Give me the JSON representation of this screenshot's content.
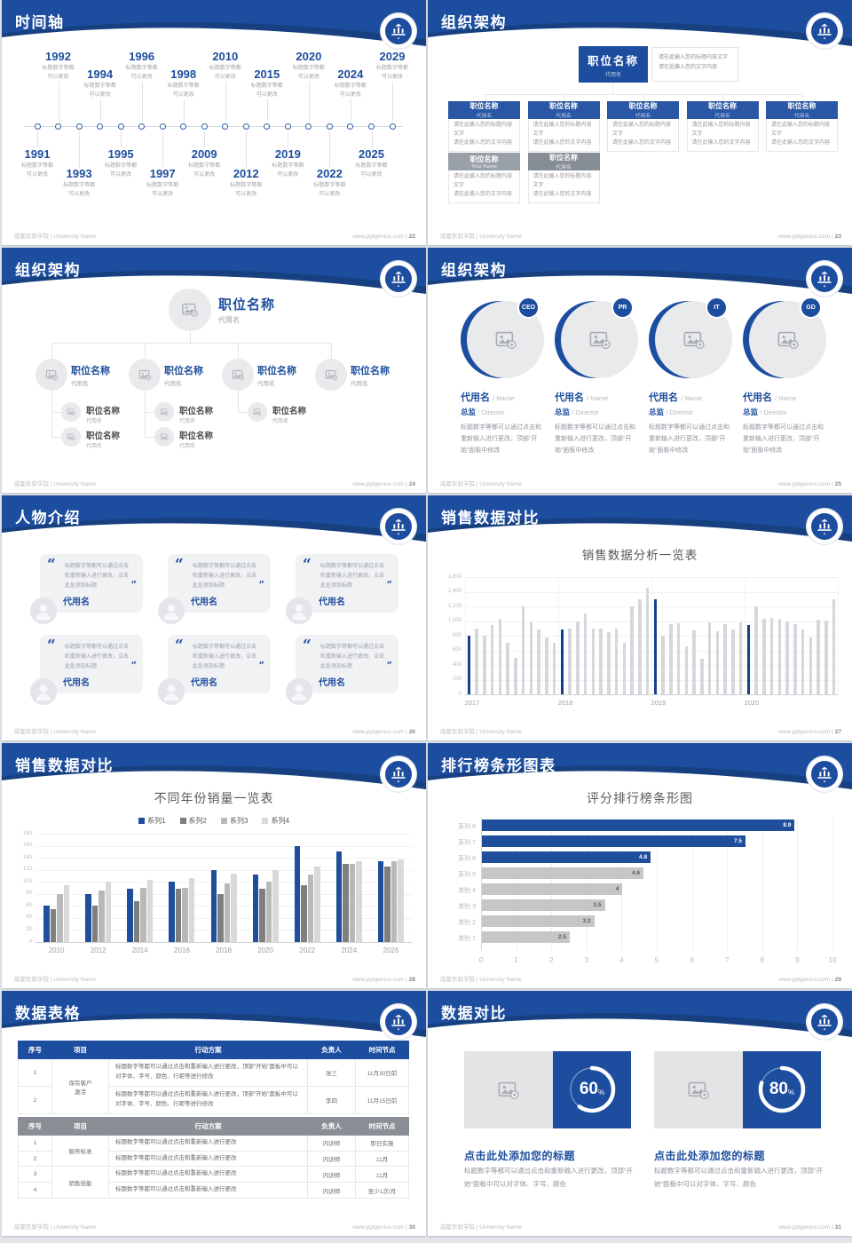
{
  "page": {
    "background": "#e2e5ea",
    "accent": "#1d4d9f",
    "dark_accent": "#16407f"
  },
  "footer": {
    "brand": "成都东软学院 | University Name",
    "site": "www.pptgenius.com",
    "separator": "|"
  },
  "slides": {
    "timeline": {
      "title": "时间轴",
      "page": "22",
      "caption": [
        "标题数字等都",
        "可以更改"
      ],
      "events": [
        {
          "year": "1991",
          "side": "bottom"
        },
        {
          "year": "1992",
          "side": "top"
        },
        {
          "year": "1993",
          "side": "bottom"
        },
        {
          "year": "1994",
          "side": "top"
        },
        {
          "year": "1995",
          "side": "bottom"
        },
        {
          "year": "1996",
          "side": "top"
        },
        {
          "year": "1997",
          "side": "bottom"
        },
        {
          "year": "1998",
          "side": "top"
        },
        {
          "year": "2009",
          "side": "bottom"
        },
        {
          "year": "2010",
          "side": "top"
        },
        {
          "year": "2012",
          "side": "bottom"
        },
        {
          "year": "2015",
          "side": "top"
        },
        {
          "year": "2019",
          "side": "bottom"
        },
        {
          "year": "2020",
          "side": "top"
        },
        {
          "year": "2022",
          "side": "bottom"
        },
        {
          "year": "2024",
          "side": "top"
        },
        {
          "year": "2025",
          "side": "bottom"
        },
        {
          "year": "2029",
          "side": "top"
        }
      ]
    },
    "org_boxes": {
      "title": "组织架构",
      "page": "23",
      "root": {
        "title": "职位名称",
        "alias": "代用名"
      },
      "root_note": [
        "请在此输入您的标题内容文字",
        "请在此输入您的文字内容"
      ],
      "body_lines": [
        "请在此输入您的标题内容文字",
        "请在此输入您的文字内容"
      ],
      "children": [
        {
          "title": "职位名称",
          "alias": "代用名"
        },
        {
          "title": "职位名称",
          "alias": "代用名"
        },
        {
          "title": "职位名称",
          "alias": "代用名"
        },
        {
          "title": "职位名称",
          "alias": "代用名"
        },
        {
          "title": "职位名称",
          "alias": "代用名"
        }
      ],
      "extras": [
        {
          "title": "职位名称",
          "alias": "Your Name"
        },
        {
          "title": "职位名称",
          "alias": "代用名"
        }
      ]
    },
    "org_tree": {
      "title": "组织架构",
      "page": "24",
      "root": {
        "title": "职位名称",
        "alias": "代用名"
      },
      "children": [
        {
          "title": "职位名称",
          "alias": "代用名",
          "subs": [
            {
              "title": "职位名称",
              "alias": "代用名"
            },
            {
              "title": "职位名称",
              "alias": "代用名"
            }
          ]
        },
        {
          "title": "职位名称",
          "alias": "代用名",
          "subs": [
            {
              "title": "职位名称",
              "alias": "代用名"
            },
            {
              "title": "职位名称",
              "alias": "代用名"
            }
          ]
        },
        {
          "title": "职位名称",
          "alias": "代用名",
          "subs": [
            {
              "title": "职位名称",
              "alias": "代用名"
            }
          ]
        },
        {
          "title": "职位名称",
          "alias": "代用名",
          "subs": []
        }
      ]
    },
    "org_circles": {
      "title": "组织架构",
      "page": "25",
      "members": [
        {
          "badge": "CEO",
          "name_cn": "代用名",
          "name_en": "Name",
          "role_cn": "总监",
          "role_en": "Director",
          "body": "标题数字等都可以通过点击和重新输入进行更改，顶部“开始”面板中修改"
        },
        {
          "badge": "PR",
          "name_cn": "代用名",
          "name_en": "Name",
          "role_cn": "总监",
          "role_en": "Director",
          "body": "标题数字等都可以通过点击和重新输入进行更改，顶部“开始”面板中修改"
        },
        {
          "badge": "IT",
          "name_cn": "代用名",
          "name_en": "Name",
          "role_cn": "总监",
          "role_en": "Director",
          "body": "标题数字等都可以通过点击和重新输入进行更改，顶部“开始”面板中修改"
        },
        {
          "badge": "GD",
          "name_cn": "代用名",
          "name_en": "Name",
          "role_cn": "总监",
          "role_en": "Director",
          "body": "标题数字等都可以通过点击和重新输入进行更改，顶部“开始”面板中修改"
        }
      ]
    },
    "people": {
      "title": "人物介绍",
      "page": "26",
      "cards": [
        {
          "quote": "标题数字等都可以通过点击和重新输入进行更改，点击此处添加标题",
          "name": "代用名"
        },
        {
          "quote": "标题数字等都可以通过点击和重新输入进行更改，点击此处添加标题",
          "name": "代用名"
        },
        {
          "quote": "标题数字等都可以通过点击和重新输入进行更改，点击此处添加标题",
          "name": "代用名"
        },
        {
          "quote": "标题数字等都可以通过点击和重新输入进行更改，点击此处添加标题",
          "name": "代用名"
        },
        {
          "quote": "标题数字等都可以通过点击和重新输入进行更改，点击此处添加标题",
          "name": "代用名"
        },
        {
          "quote": "标题数字等都可以通过点击和重新输入进行更改，点击此处添加标题",
          "name": "代用名"
        }
      ]
    },
    "sales_monthly": {
      "title": "销售数据对比",
      "page": "27"
    },
    "sales_yearly": {
      "title": "销售数据对比",
      "page": "28"
    },
    "ranking": {
      "title": "排行榜条形图表",
      "page": "29"
    },
    "tables": {
      "title": "数据表格",
      "page": "30",
      "columns": [
        "序号",
        "项目",
        "行动方案",
        "负责人",
        "时间节点"
      ],
      "table1": {
        "project": "保有客户激活",
        "plan": "标题数字等都可以通过点击和重新输入进行更改，顶部“开始”面板中可以对字体、字号、颜色、行距等进行修改",
        "rows": [
          {
            "no": "1",
            "owner": "张三",
            "time": "11月30日前"
          },
          {
            "no": "2",
            "owner": "李四",
            "time": "11月15日前"
          }
        ]
      },
      "table2": {
        "projects": [
          {
            "label": "服务标准",
            "span": 2
          },
          {
            "label": "销售技能",
            "span": 2
          }
        ],
        "plan": "标题数字等都可以通过点击和重新输入进行更改",
        "rows": [
          {
            "no": "1",
            "owner": "内训师",
            "time": "即日实施"
          },
          {
            "no": "2",
            "owner": "内训师",
            "time": "11月"
          },
          {
            "no": "3",
            "owner": "内训师",
            "time": "11月"
          },
          {
            "no": "4",
            "owner": "内训师",
            "time": "至少1次/月"
          }
        ]
      }
    },
    "compare": {
      "title": "数据对比",
      "page": "31",
      "panels": [
        {
          "percent": "60",
          "percent_sign": "%",
          "title": "点击此处添加您的标题",
          "body": "标题数字等都可以通过点击和重新输入进行更改，顶部“开始”面板中可以对字体、字号、颜色"
        },
        {
          "percent": "80",
          "percent_sign": "%",
          "title": "点击此处添加您的标题",
          "body": "标题数字等都可以通过点击和重新输入进行更改，顶部“开始”面板中可以对字体、字号、颜色"
        }
      ]
    }
  },
  "chart_data": [
    {
      "id": "sales_monthly",
      "type": "bar",
      "title": "销售数据分析一览表",
      "categories": [
        "2017",
        "2018",
        "2019",
        "2020"
      ],
      "bars_per_year": 12,
      "values": [
        800,
        900,
        800,
        950,
        1030,
        700,
        500,
        1200,
        980,
        890,
        780,
        700,
        890,
        900,
        1000,
        1100,
        900,
        900,
        850,
        900,
        700,
        1200,
        1300,
        1450,
        1300,
        800,
        960,
        970,
        660,
        870,
        490,
        980,
        860,
        960,
        890,
        980,
        950,
        1200,
        1030,
        1040,
        1030,
        990,
        960,
        890,
        780,
        1020,
        1010,
        1300
      ],
      "highlight_indices": [
        0,
        12,
        24,
        36
      ],
      "ylim": [
        0,
        1600
      ],
      "ytick_step": 200,
      "bar_color": "#d4d7db",
      "highlight_color": "#14418c",
      "grid": true
    },
    {
      "id": "sales_yearly",
      "type": "bar",
      "title": "不同年份销量一览表",
      "categories": [
        "2010",
        "2012",
        "2014",
        "2016",
        "2018",
        "2020",
        "2022",
        "2024",
        "2026"
      ],
      "series": [
        {
          "name": "系列1",
          "color": "#1f4e9c",
          "values": [
            60,
            80,
            88,
            100,
            120,
            112,
            160,
            150,
            135
          ]
        },
        {
          "name": "系列2",
          "color": "#7f7f7f",
          "values": [
            55,
            60,
            68,
            88,
            80,
            88,
            95,
            130,
            125
          ]
        },
        {
          "name": "系列3",
          "color": "#b9b9b9",
          "values": [
            80,
            86,
            90,
            90,
            98,
            100,
            112,
            130,
            135
          ]
        },
        {
          "name": "系列4",
          "color": "#d9d9d9",
          "values": [
            95,
            100,
            103,
            106,
            113,
            120,
            125,
            135,
            138
          ]
        }
      ],
      "ylim": [
        0,
        180
      ],
      "ytick_step": 20,
      "legend_position": "top",
      "grid": true
    },
    {
      "id": "ranking",
      "type": "bar",
      "orientation": "horizontal",
      "title": "评分排行榜条形图",
      "categories": [
        "系列 8",
        "系列 7",
        "系列 6",
        "系列 5",
        "类别 4",
        "类别 3",
        "类别 2",
        "类别 1"
      ],
      "values": [
        8.9,
        7.5,
        4.8,
        4.6,
        4,
        3.5,
        3.2,
        2.5
      ],
      "labels": [
        "8.9",
        "7.5",
        "4.8",
        "4.6",
        "4",
        "3.5",
        "3.2",
        "2.5"
      ],
      "bar_colors": [
        "#1f4e9c",
        "#1f4e9c",
        "#1f4e9c",
        "#c6c6c6",
        "#c6c6c6",
        "#c6c6c6",
        "#c6c6c6",
        "#c6c6c6"
      ],
      "xlim": [
        0,
        10
      ],
      "xtick_step": 1,
      "grid": true
    }
  ]
}
